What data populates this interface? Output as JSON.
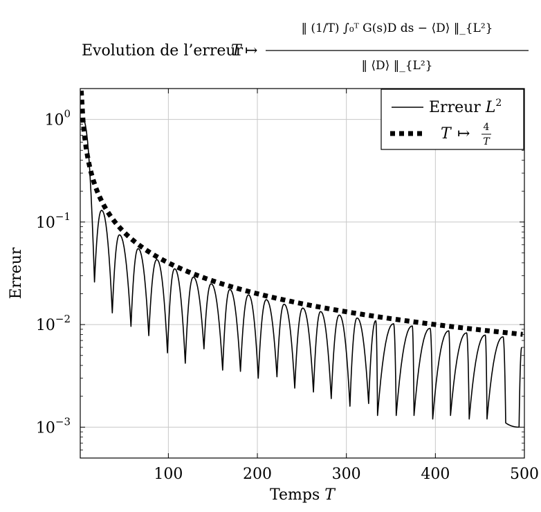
{
  "chart_data": {
    "type": "line",
    "title": {
      "prefix": "Evolution de l’erreur",
      "map_var": "T",
      "numerator": "‖ (1/T) ∫₀ᵀ G(s)D ds − ⟨D⟩ ‖_{L²}",
      "denominator": "‖ ⟨D⟩ ‖_{L²}"
    },
    "xlabel": "Temps T",
    "ylabel": "Erreur",
    "xlim": [
      1,
      500
    ],
    "ylim": [
      0.0005,
      2
    ],
    "yscale": "log",
    "grid": true,
    "legend_position": "top-right",
    "x_ticks": [
      100,
      200,
      300,
      400,
      500
    ],
    "y_ticks": [
      {
        "value": 1,
        "mantissa": "10",
        "exp": "0"
      },
      {
        "value": 0.1,
        "mantissa": "10",
        "exp": "−1"
      },
      {
        "value": 0.01,
        "mantissa": "10",
        "exp": "−2"
      },
      {
        "value": 0.001,
        "mantissa": "10",
        "exp": "−3"
      }
    ],
    "series": [
      {
        "name": "Erreur L²",
        "legend": {
          "text": "Erreur",
          "sym": "L",
          "sup": "2"
        },
        "style": "solid",
        "color": "#000000",
        "peaks": [
          [
            4,
            1.0
          ],
          [
            25,
            0.13
          ],
          [
            45,
            0.075
          ],
          [
            66,
            0.055
          ],
          [
            87,
            0.043
          ],
          [
            107,
            0.035
          ],
          [
            128,
            0.029
          ],
          [
            148,
            0.025
          ],
          [
            169,
            0.022
          ],
          [
            190,
            0.0195
          ],
          [
            210,
            0.0175
          ],
          [
            230,
            0.0158
          ],
          [
            251,
            0.0145
          ],
          [
            271,
            0.0134
          ],
          [
            292,
            0.0124
          ],
          [
            312,
            0.0116
          ],
          [
            333,
            0.0109
          ],
          [
            353,
            0.0102
          ],
          [
            374,
            0.0097
          ],
          [
            394,
            0.0092
          ],
          [
            415,
            0.0087
          ],
          [
            435,
            0.0083
          ],
          [
            456,
            0.0079
          ],
          [
            476,
            0.0076
          ],
          [
            497,
            0.006
          ]
        ],
        "minima": [
          [
            17,
            0.026
          ],
          [
            37,
            0.013
          ],
          [
            58,
            0.0096
          ],
          [
            78,
            0.0078
          ],
          [
            99,
            0.0053
          ],
          [
            119,
            0.0042
          ],
          [
            140,
            0.0058
          ],
          [
            161,
            0.0036
          ],
          [
            181,
            0.0035
          ],
          [
            201,
            0.003
          ],
          [
            222,
            0.0031
          ],
          [
            242,
            0.0024
          ],
          [
            263,
            0.0022
          ],
          [
            283,
            0.0019
          ],
          [
            304,
            0.0016
          ],
          [
            325,
            0.0017
          ],
          [
            335,
            0.0013
          ],
          [
            356,
            0.0013
          ],
          [
            376,
            0.0013
          ],
          [
            397,
            0.0012
          ],
          [
            417,
            0.0013
          ],
          [
            438,
            0.0012
          ],
          [
            458,
            0.0012
          ],
          [
            479,
            0.0011
          ],
          [
            494,
            0.001
          ]
        ]
      },
      {
        "name": "T ↦ 4/T",
        "legend": {
          "sym": "T",
          "arrow": "↦",
          "num": "4",
          "den": "T"
        },
        "style": "dotted",
        "color": "#000000",
        "function": "4/T"
      }
    ]
  }
}
